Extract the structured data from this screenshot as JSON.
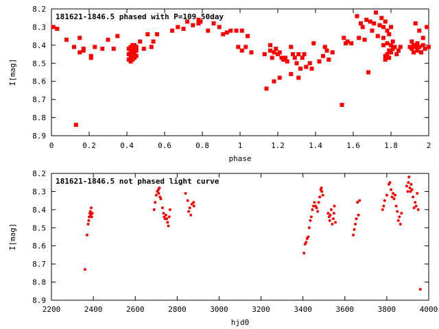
{
  "chart_data": [
    {
      "type": "scatter",
      "title": "181621-1846.5 phased with P=109.50day",
      "xlabel": "phase",
      "ylabel": "I[mag]",
      "xlim": [
        0,
        2
      ],
      "ylim": [
        8.9,
        8.2
      ],
      "y_inverted": true,
      "xticks": [
        0,
        0.2,
        0.4,
        0.6,
        0.8,
        1,
        1.2,
        1.4,
        1.6,
        1.8,
        2
      ],
      "yticks": [
        8.2,
        8.3,
        8.4,
        8.5,
        8.6,
        8.7,
        8.8,
        8.9
      ],
      "grid": false,
      "marker_color": "#ff0000",
      "points": [
        [
          0.01,
          8.3
        ],
        [
          0.03,
          8.31
        ],
        [
          0.08,
          8.37
        ],
        [
          0.12,
          8.41
        ],
        [
          0.13,
          8.84
        ],
        [
          0.15,
          8.36
        ],
        [
          0.15,
          8.44
        ],
        [
          0.17,
          8.43
        ],
        [
          0.17,
          8.42
        ],
        [
          0.21,
          8.46
        ],
        [
          0.21,
          8.47
        ],
        [
          0.23,
          8.41
        ],
        [
          0.27,
          8.42
        ],
        [
          0.3,
          8.37
        ],
        [
          0.33,
          8.42
        ],
        [
          0.35,
          8.35
        ],
        [
          0.41,
          8.48
        ],
        [
          0.41,
          8.45
        ],
        [
          0.41,
          8.42
        ],
        [
          0.42,
          8.49
        ],
        [
          0.42,
          8.47
        ],
        [
          0.42,
          8.44
        ],
        [
          0.42,
          8.41
        ],
        [
          0.43,
          8.48
        ],
        [
          0.43,
          8.45
        ],
        [
          0.43,
          8.43
        ],
        [
          0.43,
          8.4
        ],
        [
          0.44,
          8.47
        ],
        [
          0.44,
          8.44
        ],
        [
          0.44,
          8.42
        ],
        [
          0.44,
          8.4
        ],
        [
          0.45,
          8.46
        ],
        [
          0.45,
          8.43
        ],
        [
          0.45,
          8.41
        ],
        [
          0.47,
          8.38
        ],
        [
          0.49,
          8.42
        ],
        [
          0.51,
          8.34
        ],
        [
          0.53,
          8.41
        ],
        [
          0.54,
          8.38
        ],
        [
          0.56,
          8.34
        ],
        [
          0.64,
          8.32
        ],
        [
          0.67,
          8.3
        ],
        [
          0.7,
          8.31
        ],
        [
          0.72,
          8.27
        ],
        [
          0.75,
          8.29
        ],
        [
          0.78,
          8.28
        ],
        [
          0.78,
          8.26
        ],
        [
          0.79,
          8.27
        ],
        [
          0.83,
          8.32
        ],
        [
          0.86,
          8.28
        ],
        [
          0.89,
          8.3
        ],
        [
          0.91,
          8.34
        ],
        [
          0.93,
          8.33
        ],
        [
          0.95,
          8.32
        ],
        [
          0.98,
          8.32
        ],
        [
          0.99,
          8.41
        ],
        [
          1.01,
          8.32
        ],
        [
          1.01,
          8.43
        ],
        [
          1.03,
          8.41
        ],
        [
          1.04,
          8.35
        ],
        [
          1.06,
          8.44
        ],
        [
          1.13,
          8.45
        ],
        [
          1.14,
          8.64
        ],
        [
          1.16,
          8.4
        ],
        [
          1.16,
          8.43
        ],
        [
          1.17,
          8.47
        ],
        [
          1.18,
          8.44
        ],
        [
          1.18,
          8.6
        ],
        [
          1.19,
          8.42
        ],
        [
          1.2,
          8.45
        ],
        [
          1.21,
          8.44
        ],
        [
          1.21,
          8.58
        ],
        [
          1.22,
          8.47
        ],
        [
          1.23,
          8.48
        ],
        [
          1.24,
          8.47
        ],
        [
          1.25,
          8.49
        ],
        [
          1.27,
          8.41
        ],
        [
          1.27,
          8.56
        ],
        [
          1.28,
          8.45
        ],
        [
          1.29,
          8.47
        ],
        [
          1.3,
          8.5
        ],
        [
          1.31,
          8.45
        ],
        [
          1.31,
          8.58
        ],
        [
          1.32,
          8.53
        ],
        [
          1.33,
          8.47
        ],
        [
          1.34,
          8.45
        ],
        [
          1.35,
          8.52
        ],
        [
          1.37,
          8.5
        ],
        [
          1.38,
          8.53
        ],
        [
          1.39,
          8.39
        ],
        [
          1.42,
          8.49
        ],
        [
          1.44,
          8.46
        ],
        [
          1.45,
          8.41
        ],
        [
          1.46,
          8.43
        ],
        [
          1.47,
          8.48
        ],
        [
          1.49,
          8.44
        ],
        [
          1.54,
          8.73
        ],
        [
          1.55,
          8.36
        ],
        [
          1.56,
          8.39
        ],
        [
          1.57,
          8.38
        ],
        [
          1.59,
          8.39
        ],
        [
          1.62,
          8.24
        ],
        [
          1.63,
          8.36
        ],
        [
          1.64,
          8.28
        ],
        [
          1.65,
          8.3
        ],
        [
          1.66,
          8.37
        ],
        [
          1.67,
          8.26
        ],
        [
          1.68,
          8.55
        ],
        [
          1.69,
          8.27
        ],
        [
          1.7,
          8.32
        ],
        [
          1.71,
          8.28
        ],
        [
          1.72,
          8.22
        ],
        [
          1.73,
          8.35
        ],
        [
          1.74,
          8.29
        ],
        [
          1.75,
          8.25
        ],
        [
          1.76,
          8.3
        ],
        [
          1.77,
          8.27
        ],
        [
          1.78,
          8.32
        ],
        [
          1.79,
          8.34
        ],
        [
          1.8,
          8.3
        ],
        [
          1.76,
          8.36
        ],
        [
          1.76,
          8.4
        ],
        [
          1.77,
          8.46
        ],
        [
          1.77,
          8.48
        ],
        [
          1.78,
          8.45
        ],
        [
          1.78,
          8.39
        ],
        [
          1.79,
          8.43
        ],
        [
          1.79,
          8.47
        ],
        [
          1.8,
          8.4
        ],
        [
          1.8,
          8.44
        ],
        [
          1.81,
          8.38
        ],
        [
          1.81,
          8.42
        ],
        [
          1.82,
          8.41
        ],
        [
          1.83,
          8.45
        ],
        [
          1.84,
          8.43
        ],
        [
          1.85,
          8.41
        ],
        [
          1.9,
          8.41
        ],
        [
          1.91,
          8.38
        ],
        [
          1.91,
          8.42
        ],
        [
          1.92,
          8.4
        ],
        [
          1.92,
          8.44
        ],
        [
          1.93,
          8.28
        ],
        [
          1.93,
          8.41
        ],
        [
          1.94,
          8.39
        ],
        [
          1.94,
          8.43
        ],
        [
          1.95,
          8.41
        ],
        [
          1.95,
          8.32
        ],
        [
          1.96,
          8.44
        ],
        [
          1.97,
          8.4
        ],
        [
          1.97,
          8.36
        ],
        [
          1.98,
          8.42
        ],
        [
          1.99,
          8.3
        ],
        [
          2.0,
          8.41
        ]
      ]
    },
    {
      "type": "scatter",
      "title": "181621-1846.5 not phased light curve",
      "xlabel": "hjd0",
      "ylabel": "I[mag]",
      "xlim": [
        2200,
        4000
      ],
      "ylim": [
        8.9,
        8.2
      ],
      "y_inverted": true,
      "xticks": [
        2200,
        2400,
        2600,
        2800,
        3000,
        3200,
        3400,
        3600,
        3800,
        4000
      ],
      "yticks": [
        8.2,
        8.3,
        8.4,
        8.5,
        8.6,
        8.7,
        8.8,
        8.9
      ],
      "grid": false,
      "marker_color": "#ff0000",
      "points": [
        [
          2360,
          8.73
        ],
        [
          2370,
          8.54
        ],
        [
          2375,
          8.48
        ],
        [
          2378,
          8.46
        ],
        [
          2380,
          8.44
        ],
        [
          2383,
          8.42
        ],
        [
          2386,
          8.41
        ],
        [
          2388,
          8.43
        ],
        [
          2390,
          8.39
        ],
        [
          2392,
          8.44
        ],
        [
          2395,
          8.42
        ],
        [
          2690,
          8.4
        ],
        [
          2695,
          8.36
        ],
        [
          2700,
          8.32
        ],
        [
          2705,
          8.3
        ],
        [
          2710,
          8.29
        ],
        [
          2712,
          8.31
        ],
        [
          2715,
          8.28
        ],
        [
          2718,
          8.33
        ],
        [
          2722,
          8.34
        ],
        [
          2730,
          8.39
        ],
        [
          2735,
          8.42
        ],
        [
          2738,
          8.44
        ],
        [
          2742,
          8.45
        ],
        [
          2746,
          8.43
        ],
        [
          2750,
          8.45
        ],
        [
          2754,
          8.47
        ],
        [
          2758,
          8.49
        ],
        [
          2762,
          8.44
        ],
        [
          2766,
          8.4
        ],
        [
          2840,
          8.31
        ],
        [
          2850,
          8.35
        ],
        [
          2855,
          8.41
        ],
        [
          2860,
          8.39
        ],
        [
          2865,
          8.43
        ],
        [
          2870,
          8.37
        ],
        [
          2878,
          8.36
        ],
        [
          2880,
          8.38
        ],
        [
          3405,
          8.64
        ],
        [
          3410,
          8.59
        ],
        [
          3415,
          8.58
        ],
        [
          3420,
          8.56
        ],
        [
          3425,
          8.55
        ],
        [
          3430,
          8.5
        ],
        [
          3435,
          8.46
        ],
        [
          3440,
          8.44
        ],
        [
          3445,
          8.4
        ],
        [
          3450,
          8.38
        ],
        [
          3455,
          8.36
        ],
        [
          3460,
          8.38
        ],
        [
          3465,
          8.39
        ],
        [
          3470,
          8.41
        ],
        [
          3475,
          8.36
        ],
        [
          3480,
          8.33
        ],
        [
          3485,
          8.29
        ],
        [
          3488,
          8.28
        ],
        [
          3490,
          8.3
        ],
        [
          3495,
          8.32
        ],
        [
          3520,
          8.42
        ],
        [
          3525,
          8.44
        ],
        [
          3528,
          8.46
        ],
        [
          3530,
          8.43
        ],
        [
          3535,
          8.4
        ],
        [
          3540,
          8.48
        ],
        [
          3545,
          8.45
        ],
        [
          3548,
          8.42
        ],
        [
          3550,
          8.38
        ],
        [
          3555,
          8.47
        ],
        [
          3640,
          8.54
        ],
        [
          3645,
          8.51
        ],
        [
          3650,
          8.48
        ],
        [
          3655,
          8.45
        ],
        [
          3660,
          8.36
        ],
        [
          3665,
          8.43
        ],
        [
          3670,
          8.35
        ],
        [
          3780,
          8.4
        ],
        [
          3785,
          8.38
        ],
        [
          3790,
          8.35
        ],
        [
          3800,
          8.32
        ],
        [
          3810,
          8.26
        ],
        [
          3815,
          8.25
        ],
        [
          3820,
          8.29
        ],
        [
          3825,
          8.33
        ],
        [
          3830,
          8.31
        ],
        [
          3835,
          8.34
        ],
        [
          3840,
          8.32
        ],
        [
          3845,
          8.38
        ],
        [
          3850,
          8.41
        ],
        [
          3855,
          8.46
        ],
        [
          3860,
          8.44
        ],
        [
          3865,
          8.48
        ],
        [
          3870,
          8.42
        ],
        [
          3895,
          8.27
        ],
        [
          3900,
          8.3
        ],
        [
          3903,
          8.25
        ],
        [
          3906,
          8.22
        ],
        [
          3910,
          8.28
        ],
        [
          3913,
          8.3
        ],
        [
          3916,
          8.26
        ],
        [
          3920,
          8.29
        ],
        [
          3925,
          8.33
        ],
        [
          3930,
          8.39
        ],
        [
          3935,
          8.36
        ],
        [
          3940,
          8.38
        ],
        [
          3945,
          8.31
        ],
        [
          3950,
          8.4
        ],
        [
          3960,
          8.84
        ]
      ]
    }
  ]
}
